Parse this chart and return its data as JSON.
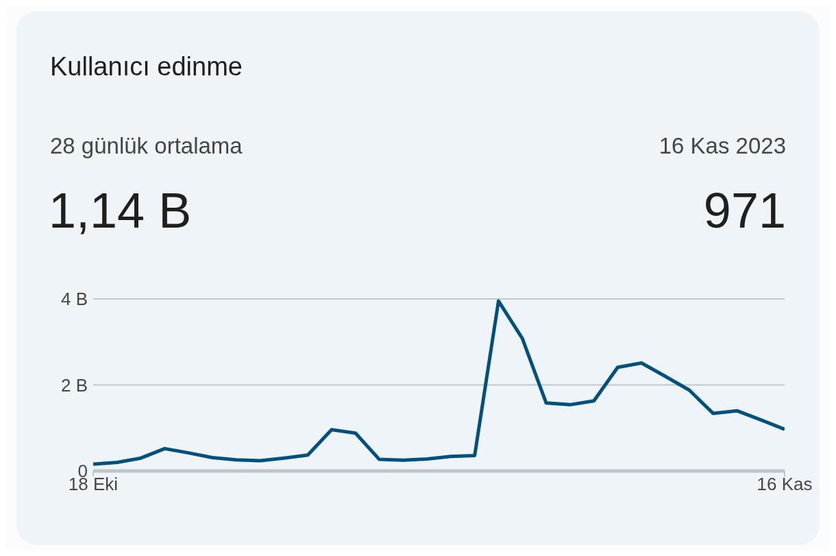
{
  "chart_data": {
    "type": "line",
    "title": "Kullanıcı edinme",
    "subtitle": "28 günlük ortalama",
    "annotations": [
      "1,14 B",
      "16 Kas 2023",
      "971"
    ],
    "x": [
      "2023-10-18",
      "2023-10-19",
      "2023-10-20",
      "2023-10-21",
      "2023-10-22",
      "2023-10-23",
      "2023-10-24",
      "2023-10-25",
      "2023-10-26",
      "2023-10-27",
      "2023-10-28",
      "2023-10-29",
      "2023-10-30",
      "2023-10-31",
      "2023-11-01",
      "2023-11-02",
      "2023-11-03",
      "2023-11-04",
      "2023-11-05",
      "2023-11-06",
      "2023-11-07",
      "2023-11-08",
      "2023-11-09",
      "2023-11-10",
      "2023-11-11",
      "2023-11-12",
      "2023-11-13",
      "2023-11-14",
      "2023-11-15",
      "2023-11-16"
    ],
    "series": [
      {
        "color": "#01507e",
        "values": [
          0.16,
          0.2,
          0.3,
          0.52,
          0.42,
          0.31,
          0.26,
          0.24,
          0.3,
          0.37,
          0.96,
          0.88,
          0.27,
          0.25,
          0.28,
          0.34,
          0.36,
          3.95,
          3.08,
          1.58,
          1.54,
          1.63,
          2.41,
          2.51,
          2.2,
          1.88,
          1.34,
          1.4,
          1.19,
          0.97
        ]
      }
    ],
    "xlim": [
      "2023-10-18",
      "2023-11-16"
    ],
    "xticks": [
      {
        "value": "2023-10-18",
        "label": "18 Eki"
      },
      {
        "value": "2023-11-16",
        "label": "16 Kas"
      }
    ],
    "ylim": [
      0,
      4
    ],
    "yticks": [
      {
        "value": 0,
        "label": "0"
      },
      {
        "value": 2,
        "label": "2 B"
      },
      {
        "value": 4,
        "label": "4 B"
      }
    ],
    "grid": "y",
    "marker": "none",
    "line_style": "solid"
  }
}
